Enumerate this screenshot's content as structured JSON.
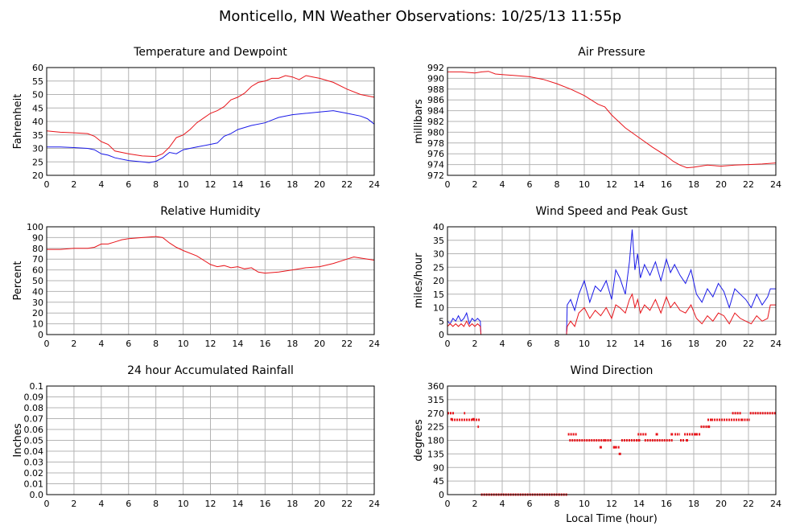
{
  "title": "Monticello, MN Weather Observations: 10/25/13 11:55p",
  "colors": {
    "red": "#e8141a",
    "blue": "#1a1ae8",
    "grid": "#b4b4b4"
  },
  "chart_data": [
    {
      "id": "temp",
      "type": "line",
      "title": "Temperature and Dewpoint",
      "xlabel": "",
      "ylabel": "Fahrenheit",
      "xlim": [
        0,
        24
      ],
      "ylim": [
        20,
        60
      ],
      "xticks": [
        0,
        2,
        4,
        6,
        8,
        10,
        12,
        14,
        16,
        18,
        20,
        22,
        24
      ],
      "yticks": [
        20,
        25,
        30,
        35,
        40,
        45,
        50,
        55,
        60
      ],
      "ytick_labels": [
        "20",
        "25",
        "30",
        "35",
        "40",
        "45",
        "50",
        "55",
        "60"
      ],
      "grid": true,
      "series": [
        {
          "color": "red",
          "x": [
            0,
            1,
            2,
            3,
            3.5,
            4,
            4.5,
            5,
            6,
            7,
            8,
            8.5,
            9,
            9.5,
            10,
            10.5,
            11,
            12,
            12.5,
            13,
            13.5,
            14,
            14.5,
            15,
            15.5,
            16,
            16.5,
            17,
            17.5,
            18,
            18.5,
            19,
            19.5,
            20,
            21,
            22,
            23,
            24
          ],
          "y": [
            36.5,
            36,
            35.8,
            35.5,
            34.5,
            32.5,
            31.5,
            29,
            28,
            27.2,
            27,
            28,
            30.5,
            34,
            35,
            37,
            39.5,
            43,
            44,
            45.5,
            48,
            49,
            50.5,
            53,
            54.5,
            55,
            56,
            56,
            57,
            56.5,
            55.5,
            57,
            56.5,
            56,
            54.5,
            52,
            50,
            49
          ]
        },
        {
          "color": "blue",
          "x": [
            0,
            1,
            2,
            3,
            3.5,
            4,
            4.5,
            5,
            6,
            7,
            7.5,
            8,
            8.5,
            9,
            9.5,
            10,
            11,
            12,
            12.5,
            13,
            13.5,
            14,
            15,
            16,
            16.5,
            17,
            18,
            19,
            20,
            21,
            21.5,
            22,
            23,
            23.5,
            24
          ],
          "y": [
            30.5,
            30.5,
            30.3,
            30,
            29.5,
            28,
            27.5,
            26.5,
            25.5,
            25,
            24.7,
            25.2,
            26.5,
            28.5,
            28,
            29.5,
            30.5,
            31.5,
            32,
            34.5,
            35.5,
            37,
            38.5,
            39.5,
            40.5,
            41.5,
            42.5,
            43,
            43.5,
            44,
            43.5,
            43,
            42,
            41,
            39
          ]
        }
      ]
    },
    {
      "id": "pressure",
      "type": "line",
      "title": "Air Pressure",
      "xlabel": "",
      "ylabel": "millibars",
      "xlim": [
        0,
        24
      ],
      "ylim": [
        972,
        992
      ],
      "xticks": [
        0,
        2,
        4,
        6,
        8,
        10,
        12,
        14,
        16,
        18,
        20,
        22,
        24
      ],
      "yticks": [
        972,
        974,
        976,
        978,
        980,
        982,
        984,
        986,
        988,
        990,
        992
      ],
      "ytick_labels": [
        "972",
        "974",
        "976",
        "978",
        "980",
        "982",
        "984",
        "986",
        "988",
        "990",
        "992"
      ],
      "grid": true,
      "series": [
        {
          "color": "red",
          "x": [
            0,
            1,
            2,
            2.5,
            3,
            3.5,
            4,
            5,
            6,
            7,
            8,
            9,
            10,
            11,
            11.5,
            12,
            12.5,
            13,
            14,
            15,
            16,
            16.5,
            17,
            17.5,
            18,
            19,
            20,
            21,
            22,
            23,
            24
          ],
          "y": [
            991.2,
            991.2,
            991,
            991.2,
            991.3,
            990.8,
            990.7,
            990.5,
            990.3,
            989.8,
            989,
            988,
            986.8,
            985.2,
            984.7,
            983.2,
            982,
            980.8,
            979,
            977.2,
            975.6,
            974.6,
            973.9,
            973.4,
            973.5,
            973.9,
            973.7,
            973.9,
            974,
            974.1,
            974.3
          ]
        }
      ]
    },
    {
      "id": "humidity",
      "type": "line",
      "title": "Relative Humidity",
      "xlabel": "",
      "ylabel": "Percent",
      "xlim": [
        0,
        24
      ],
      "ylim": [
        0,
        100
      ],
      "xticks": [
        0,
        2,
        4,
        6,
        8,
        10,
        12,
        14,
        16,
        18,
        20,
        22,
        24
      ],
      "yticks": [
        0,
        10,
        20,
        30,
        40,
        50,
        60,
        70,
        80,
        90,
        100
      ],
      "ytick_labels": [
        "0",
        "10",
        "20",
        "30",
        "40",
        "50",
        "60",
        "70",
        "80",
        "90",
        "100"
      ],
      "grid": true,
      "series": [
        {
          "color": "red",
          "x": [
            0,
            1,
            2,
            3,
            3.5,
            4,
            4.5,
            5,
            5.5,
            6,
            7,
            8,
            8.5,
            9,
            9.5,
            10,
            11,
            12,
            12.5,
            13,
            13.5,
            14,
            14.5,
            15,
            15.5,
            16,
            17,
            18,
            19,
            20,
            21,
            22,
            22.5,
            23,
            24
          ],
          "y": [
            79,
            79,
            80,
            80,
            81,
            84,
            84,
            86,
            88,
            89,
            90,
            91,
            90,
            85,
            81,
            78,
            73,
            65,
            63,
            64,
            62,
            63,
            61,
            62,
            58,
            57,
            58,
            60,
            62,
            63,
            66,
            70,
            72,
            71,
            69
          ]
        }
      ]
    },
    {
      "id": "wind",
      "type": "line",
      "title": "Wind Speed and Peak Gust",
      "xlabel": "",
      "ylabel": "miles/hour",
      "xlim": [
        0,
        24
      ],
      "ylim": [
        0,
        40
      ],
      "xticks": [
        0,
        2,
        4,
        6,
        8,
        10,
        12,
        14,
        16,
        18,
        20,
        22,
        24
      ],
      "yticks": [
        0,
        5,
        10,
        15,
        20,
        25,
        30,
        35,
        40
      ],
      "ytick_labels": [
        "0",
        "5",
        "10",
        "15",
        "20",
        "25",
        "30",
        "35",
        "40"
      ],
      "grid": true,
      "series": [
        {
          "color": "blue",
          "x": [
            0,
            0.2,
            0.4,
            0.6,
            0.8,
            1,
            1.2,
            1.4,
            1.6,
            1.8,
            2,
            2.2,
            2.4,
            2.45,
            8.7,
            8.75,
            9,
            9.3,
            9.6,
            10,
            10.4,
            10.8,
            11.2,
            11.6,
            12,
            12.3,
            12.6,
            13,
            13.3,
            13.5,
            13.7,
            13.9,
            14.1,
            14.4,
            14.8,
            15.2,
            15.6,
            16,
            16.3,
            16.6,
            17,
            17.4,
            17.8,
            18.2,
            18.6,
            19,
            19.4,
            19.8,
            20.2,
            20.6,
            21,
            21.4,
            21.8,
            22.2,
            22.6,
            23,
            23.4,
            23.6,
            24
          ],
          "y": [
            5,
            4,
            6,
            5,
            7,
            5,
            6,
            8,
            4,
            6,
            5,
            6,
            5,
            0,
            0,
            11,
            13,
            9,
            15,
            20,
            12,
            18,
            16,
            20,
            13,
            24,
            21,
            15,
            27,
            39,
            24,
            30,
            21,
            26,
            22,
            27,
            20,
            28,
            23,
            26,
            22,
            19,
            24,
            15,
            12,
            17,
            14,
            19,
            16,
            10,
            17,
            15,
            13,
            10,
            15,
            11,
            14,
            17,
            17
          ]
        },
        {
          "color": "red",
          "x": [
            0,
            0.2,
            0.4,
            0.6,
            0.8,
            1,
            1.2,
            1.4,
            1.6,
            1.8,
            2,
            2.2,
            2.4,
            2.45,
            8.7,
            8.75,
            9,
            9.3,
            9.6,
            10,
            10.4,
            10.8,
            11.2,
            11.6,
            12,
            12.3,
            12.6,
            13,
            13.3,
            13.5,
            13.7,
            13.9,
            14.1,
            14.4,
            14.8,
            15.2,
            15.6,
            16,
            16.3,
            16.6,
            17,
            17.4,
            17.8,
            18.2,
            18.6,
            19,
            19.4,
            19.8,
            20.2,
            20.6,
            21,
            21.4,
            21.8,
            22.2,
            22.6,
            23,
            23.4,
            23.6,
            24
          ],
          "y": [
            3,
            4,
            3,
            4,
            3,
            4,
            3,
            5,
            3,
            4,
            3,
            4,
            3,
            0,
            0,
            3,
            5,
            3,
            8,
            10,
            6,
            9,
            7,
            10,
            6,
            11,
            10,
            8,
            13,
            15,
            10,
            13,
            8,
            11,
            9,
            13,
            8,
            14,
            10,
            12,
            9,
            8,
            11,
            6,
            4,
            7,
            5,
            8,
            7,
            4,
            8,
            6,
            5,
            4,
            7,
            5,
            6,
            11,
            11
          ]
        }
      ]
    },
    {
      "id": "rain",
      "type": "line",
      "title": "24 hour Accumulated Rainfall",
      "xlabel": "",
      "ylabel": "Inches",
      "xlim": [
        0,
        24
      ],
      "ylim": [
        0,
        0.1
      ],
      "xticks": [
        0,
        2,
        4,
        6,
        8,
        10,
        12,
        14,
        16,
        18,
        20,
        22,
        24
      ],
      "yticks": [
        0,
        0.01,
        0.02,
        0.03,
        0.04,
        0.05,
        0.06,
        0.07,
        0.08,
        0.09,
        0.1
      ],
      "ytick_labels": [
        "0.0",
        "0.01",
        "0.02",
        "0.03",
        "0.04",
        "0.05",
        "0.06",
        "0.07",
        "0.08",
        "0.09",
        "0.1"
      ],
      "grid": true,
      "series": [
        {
          "color": "red",
          "x": [
            0,
            24
          ],
          "y": [
            0,
            0
          ]
        }
      ]
    },
    {
      "id": "direction",
      "type": "scatter",
      "title": "Wind Direction",
      "xlabel": "Local Time (hour)",
      "ylabel": "degrees",
      "xlim": [
        0,
        24
      ],
      "ylim": [
        0,
        360
      ],
      "xticks": [
        0,
        2,
        4,
        6,
        8,
        10,
        12,
        14,
        16,
        18,
        20,
        22,
        24
      ],
      "yticks": [
        0,
        45,
        90,
        135,
        180,
        225,
        270,
        315,
        360
      ],
      "ytick_labels": [
        "0",
        "45",
        "90",
        "135",
        "180",
        "225",
        "270",
        "315",
        "360"
      ],
      "grid": true,
      "series": [
        {
          "color": "red",
          "segments": [
            [
              0,
              0.5,
              270
            ],
            [
              0.3,
              2.4,
              248
            ],
            [
              1.2,
              1.3,
              270
            ],
            [
              2.2,
              2.3,
              225
            ],
            [
              2.45,
              8.8,
              0
            ],
            [
              8.8,
              9.5,
              200
            ],
            [
              8.9,
              11.5,
              180
            ],
            [
              11.5,
              12.0,
              180
            ],
            [
              12.1,
              12.6,
              157
            ],
            [
              12.7,
              13.9,
              180
            ],
            [
              13.9,
              14.6,
              200
            ],
            [
              14.4,
              15.1,
              180
            ],
            [
              15.1,
              16.5,
              180
            ],
            [
              16.6,
              17.0,
              200
            ],
            [
              17.0,
              17.3,
              180
            ],
            [
              17.3,
              18.5,
              200
            ],
            [
              18.5,
              19.0,
              225
            ],
            [
              19.0,
              19.3,
              248
            ],
            [
              19.3,
              21.5,
              248
            ],
            [
              20.8,
              21.5,
              270
            ],
            [
              21.5,
              22.1,
              248
            ],
            [
              22.1,
              24.0,
              270
            ]
          ],
          "singles": [
            [
              0.3,
              250
            ],
            [
              1.9,
              250
            ],
            [
              11.2,
              157
            ],
            [
              12.2,
              157
            ],
            [
              12.6,
              135
            ],
            [
              14.0,
              180
            ],
            [
              15.3,
              200
            ],
            [
              16.4,
              200
            ],
            [
              17.5,
              180
            ],
            [
              18.2,
              200
            ],
            [
              19.1,
              225
            ]
          ]
        }
      ]
    }
  ]
}
